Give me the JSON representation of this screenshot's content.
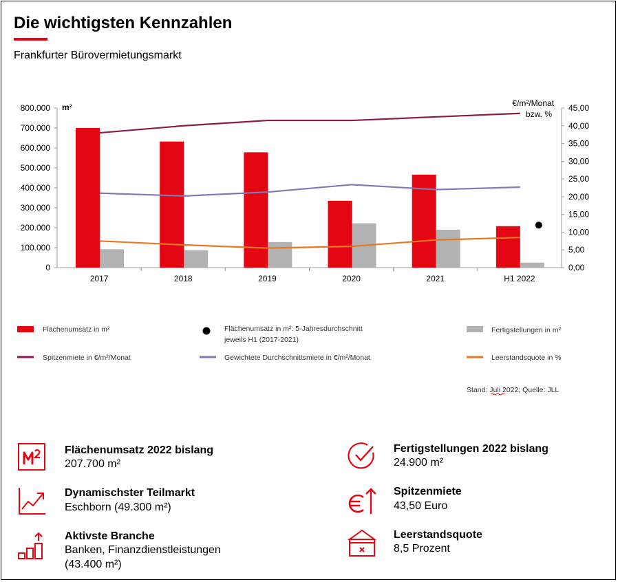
{
  "header": {
    "title": "Die wichtigsten Kennzahlen",
    "subtitle": "Frankfurter Bürovermietungsmarkt"
  },
  "colors": {
    "accent": "#e30613",
    "spitzenmiete": "#8b1a4a",
    "durchschnittsmiete": "#8079b8",
    "leerstand": "#e87722",
    "fertigstellungen": "#b2b2b2"
  },
  "chart_data": {
    "type": "bar",
    "categories": [
      "2017",
      "2018",
      "2019",
      "2020",
      "2021",
      "H1 2022"
    ],
    "left_axis": {
      "unit_label": "m²",
      "range": [
        0,
        800000
      ],
      "ticks": [
        "0",
        "100.000",
        "200.000",
        "300.000",
        "400.000",
        "500.000",
        "600.000",
        "700.000",
        "800.000"
      ]
    },
    "right_axis": {
      "unit_label_line1": "€/m²/Monat",
      "unit_label_line2": "bzw. %",
      "range": [
        0,
        45
      ],
      "ticks": [
        "0,00",
        "5,00",
        "10,00",
        "15,00",
        "20,00",
        "25,00",
        "30,00",
        "35,00",
        "40,00",
        "45,00"
      ]
    },
    "series": [
      {
        "name": "Flächenumsatz in m²",
        "type": "bar",
        "axis": "left",
        "values": [
          700000,
          632000,
          578000,
          335000,
          466000,
          207700
        ]
      },
      {
        "name": "Fertigstellungen in m²",
        "type": "bar",
        "axis": "left",
        "values": [
          92000,
          87000,
          128000,
          222000,
          190000,
          24900
        ]
      },
      {
        "name": "Spitzenmiete in €/m²/Monat",
        "type": "line",
        "axis": "right",
        "values": [
          38.0,
          40.0,
          41.5,
          41.5,
          42.5,
          43.5
        ]
      },
      {
        "name": "Gewichtete Durchschnittsmiete in €/m²/Monat",
        "type": "line",
        "axis": "right",
        "values": [
          21.0,
          20.2,
          21.3,
          23.4,
          22.0,
          22.7
        ]
      },
      {
        "name": "Leerstandsquote in %",
        "type": "line",
        "axis": "right",
        "values": [
          7.5,
          6.4,
          5.5,
          6.0,
          7.8,
          8.5
        ]
      }
    ],
    "average_marker": {
      "name_line1": "Flächenumsatz in m²: 5-Jahresdurchschnitt",
      "name_line2": "jeweils H1 (2017-2021)",
      "category": "H1 2022",
      "value": 213000
    },
    "legend": [
      {
        "key": "umsatz",
        "label": "Flächenumsatz in m²"
      },
      {
        "key": "avg",
        "label": "Flächenumsatz in m²: 5-Jahresdurchschnitt"
      },
      {
        "key": "fertig",
        "label": "Fertigstellungen in m²"
      },
      {
        "key": "spitze",
        "label": "Spitzenmiete in €/m²/Monat"
      },
      {
        "key": "durchschnitt",
        "label": "Gewichtete Durchschnittsmiete in €/m²/Monat"
      },
      {
        "key": "leer",
        "label": "Leerstandsquote in %"
      }
    ],
    "source": "Stand: Juli 2022; Quelle: JLL"
  },
  "kpis": [
    {
      "icon": "m2-icon",
      "title": "Flächenumsatz 2022 bislang",
      "value": "207.700 m²"
    },
    {
      "icon": "check-circle-icon",
      "title": "Fertigstellungen 2022 bislang",
      "value": "24.900 m²"
    },
    {
      "icon": "trend-up-chart-icon",
      "title": "Dynamischster Teilmarkt",
      "value": "Eschborn (49.300 m²)"
    },
    {
      "icon": "euro-up-arrow-icon",
      "title": "Spitzenmiete",
      "value": "43,50 Euro"
    },
    {
      "icon": "bar-steps-up-icon",
      "title": "Aktivste Branche",
      "value": "Banken, Finanzdienstleistungen",
      "value2": "(43.400 m²)"
    },
    {
      "icon": "empty-box-icon",
      "title": "Leerstandsquote",
      "value": "8,5 Prozent"
    }
  ]
}
